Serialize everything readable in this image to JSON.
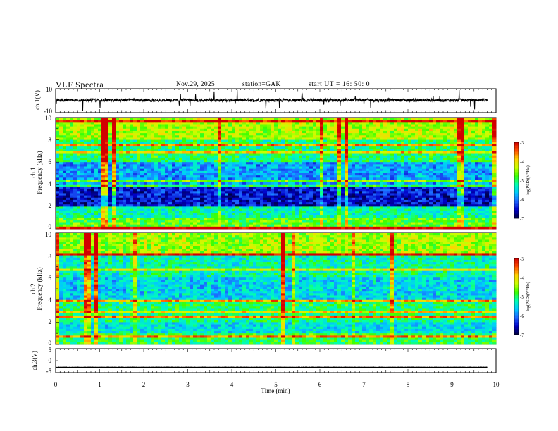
{
  "header": {
    "title": "VLF  Spectra",
    "date": "Nov.29, 2025",
    "station": "station=GAK",
    "start_ut": "start  UT =   16: 50: 0"
  },
  "colors": {
    "colormap": [
      "#000040",
      "#0000c8",
      "#1e64ff",
      "#00c8ff",
      "#00ffb4",
      "#3cff00",
      "#c8ff00",
      "#ffd200",
      "#ff5000",
      "#d20000"
    ],
    "trace": "#000000",
    "axis": "#000000"
  },
  "chart_data": [
    {
      "type": "line",
      "panel": "ch1-waveform",
      "ylabel": "ch.1(V)",
      "ylim": [
        -10,
        10
      ],
      "yticks": [
        "10",
        "-10"
      ],
      "x_range": [
        0,
        9.8
      ],
      "description_values": {
        "baseline": 0.5,
        "amplitude_typical": 2.5,
        "amplitude_max": 8
      }
    },
    {
      "type": "heatmap",
      "panel": "ch1-spectrogram",
      "ylabel_top": "ch.1",
      "ylabel": "Frequency  (kHz)",
      "ylim": [
        0,
        10
      ],
      "yticks": [
        "0",
        "2",
        "4",
        "6",
        "8",
        "10"
      ],
      "colorbar": {
        "label": "log(PSD)(V²/Hz)",
        "range": [
          -7,
          -3
        ],
        "ticks": [
          "-3",
          "-4",
          "-5",
          "-6",
          "-7"
        ]
      }
    },
    {
      "type": "heatmap",
      "panel": "ch2-spectrogram",
      "ylabel_top": "ch.2",
      "ylabel": "Frequency  (kHz)",
      "ylim": [
        0,
        10
      ],
      "yticks": [
        "0",
        "2",
        "4",
        "6",
        "8",
        "10"
      ],
      "colorbar": {
        "label": "log(PSD)(V²/Hz)",
        "range": [
          -7,
          -3
        ],
        "ticks": [
          "-3",
          "-4",
          "-5",
          "-6",
          "-7"
        ]
      }
    },
    {
      "type": "line",
      "panel": "ch3-waveform",
      "ylabel": "ch.3(V)",
      "ylim": [
        -5,
        5
      ],
      "yticks": [
        "5",
        "0",
        "-5"
      ],
      "x_range": [
        0,
        9.8
      ],
      "description_values": {
        "baseline": -2.8,
        "amplitude_typical": 0.15
      }
    }
  ],
  "xaxis": {
    "label": "Time  (min)",
    "range": [
      0,
      10
    ],
    "ticks": [
      "0",
      "1",
      "2",
      "3",
      "4",
      "5",
      "6",
      "7",
      "8",
      "9",
      "10"
    ]
  }
}
